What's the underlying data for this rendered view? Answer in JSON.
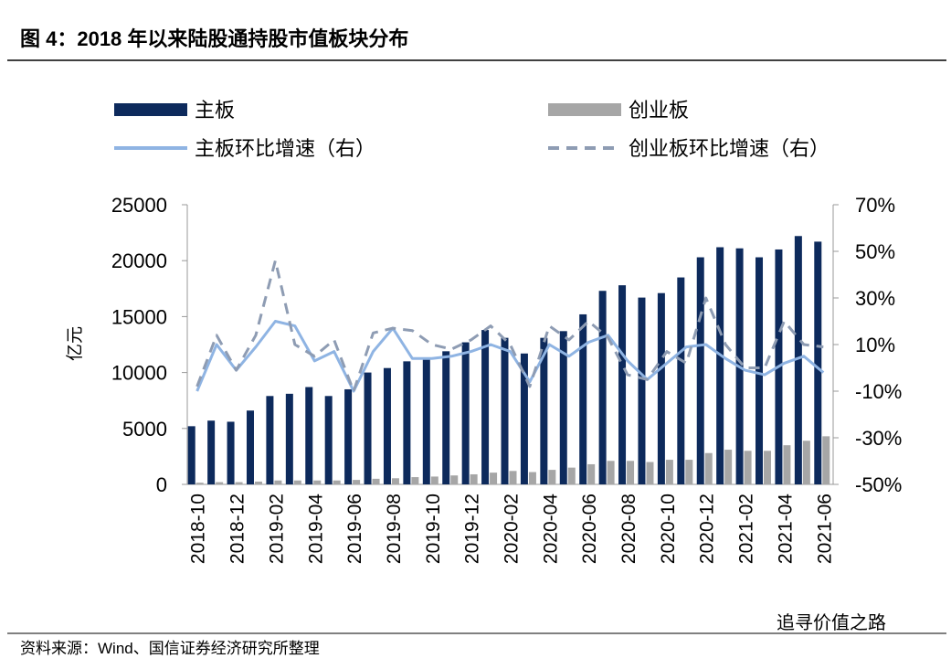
{
  "chart_data": {
    "type": "bar-line",
    "title": "图 4：2018 年以来陆股通持股市值板块分布",
    "source": "资料来源：Wind、国信证券经济研究所整理",
    "watermark": "追寻价值之路",
    "ylabel": "亿元",
    "categories": [
      "2018-10",
      null,
      "2018-12",
      null,
      "2019-02",
      null,
      "2019-04",
      null,
      "2019-06",
      null,
      "2019-08",
      null,
      "2019-10",
      null,
      "2019-12",
      null,
      "2020-02",
      null,
      "2020-04",
      null,
      "2020-06",
      null,
      "2020-08",
      null,
      "2020-10",
      null,
      "2020-12",
      null,
      "2021-02",
      null,
      "2021-04",
      null,
      "2021-06"
    ],
    "series": [
      {
        "name": "主板",
        "kind": "bar",
        "color": "#0d2a5c",
        "values": [
          5200,
          5700,
          5600,
          6600,
          7900,
          8100,
          8700,
          7900,
          8500,
          10000,
          10400,
          11000,
          11300,
          11900,
          12700,
          13800,
          13100,
          11700,
          13100,
          13700,
          15200,
          17300,
          17800,
          16700,
          17100,
          18500,
          20300,
          21200,
          21100,
          20300,
          21000,
          22200,
          21700
        ]
      },
      {
        "name": "创业板",
        "kind": "bar",
        "color": "#a6a6a6",
        "values": [
          150,
          200,
          200,
          250,
          350,
          350,
          350,
          350,
          400,
          500,
          550,
          650,
          700,
          800,
          900,
          1050,
          1200,
          1100,
          1300,
          1500,
          1800,
          2100,
          2100,
          2000,
          2200,
          2200,
          2800,
          3100,
          3000,
          3000,
          3500,
          3900,
          4300
        ]
      },
      {
        "name": "主板环比增速（右）",
        "kind": "line",
        "axis": "y2",
        "color": "#8fb4e3",
        "values": [
          -10,
          10,
          -1,
          9,
          20,
          18,
          3,
          7,
          -10,
          7,
          17,
          4,
          4,
          5,
          7,
          10,
          7,
          -6,
          10,
          5,
          11,
          14,
          3,
          -5,
          2,
          9,
          10,
          4,
          -1,
          -3,
          2,
          5,
          -2
        ]
      },
      {
        "name": "创业板环比增速（右）",
        "kind": "dashed",
        "axis": "y2",
        "color": "#8e9cb3",
        "values": [
          -8,
          14,
          -1,
          14,
          46,
          10,
          5,
          12,
          -10,
          15,
          17,
          16,
          10,
          8,
          12,
          18,
          10,
          -8,
          18,
          12,
          20,
          13,
          -3,
          -5,
          7,
          2,
          30,
          10,
          0,
          0,
          20,
          10,
          9
        ]
      }
    ],
    "ylim": [
      0,
      25000
    ],
    "yticks": [
      0,
      5000,
      10000,
      15000,
      20000,
      25000
    ],
    "y2lim": [
      -50,
      70
    ],
    "y2ticks": [
      {
        "value": -50,
        "label": "-50%"
      },
      {
        "value": -30,
        "label": "-30%"
      },
      {
        "value": -10,
        "label": "-10%"
      },
      {
        "value": 10,
        "label": "10%"
      },
      {
        "value": 30,
        "label": "30%"
      },
      {
        "value": 50,
        "label": "50%"
      },
      {
        "value": 70,
        "label": "70%"
      }
    ]
  }
}
